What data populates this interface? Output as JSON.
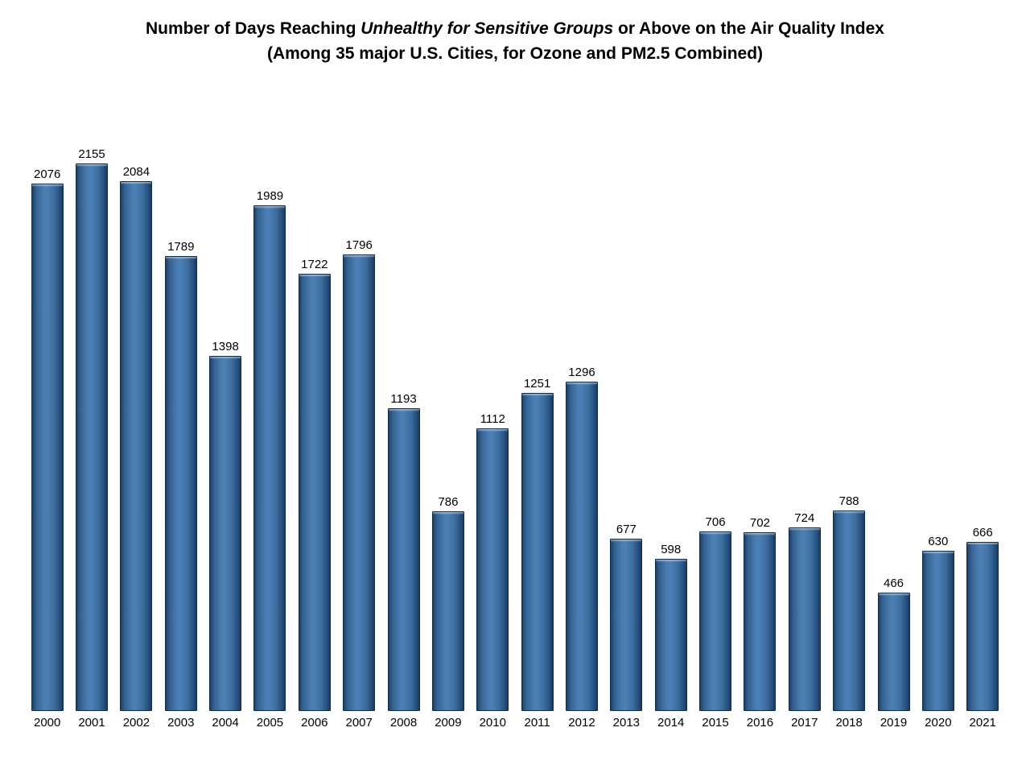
{
  "title": {
    "line1_prefix": "Number of Days Reaching ",
    "line1_italic": "Unhealthy for Sensitive Groups",
    "line1_suffix": " or Above on the Air Quality Index",
    "line2": "(Among 35 major U.S. Cities, for Ozone and PM2.5 Combined)"
  },
  "chart_data": {
    "type": "bar",
    "title": "Number of Days Reaching Unhealthy for Sensitive Groups or Above on the Air Quality Index",
    "subtitle": "(Among 35 major U.S. Cities, for Ozone and PM2.5 Combined)",
    "categories": [
      "2000",
      "2001",
      "2002",
      "2003",
      "2004",
      "2005",
      "2006",
      "2007",
      "2008",
      "2009",
      "2010",
      "2011",
      "2012",
      "2013",
      "2014",
      "2015",
      "2016",
      "2017",
      "2018",
      "2019",
      "2020",
      "2021"
    ],
    "values": [
      2076,
      2155,
      2084,
      1789,
      1398,
      1989,
      1722,
      1796,
      1193,
      786,
      1112,
      1251,
      1296,
      677,
      598,
      706,
      702,
      724,
      788,
      466,
      630,
      666
    ],
    "xlabel": "",
    "ylabel": "",
    "ylim": [
      0,
      2155
    ],
    "grid": false,
    "legend_position": "none",
    "value_labels_shown": true,
    "axis_lines_shown": false,
    "bar_fill_color": "#4c80b5",
    "bar_edge_dark_color": "#1d4066",
    "bar_border_color": "#0e2a49",
    "label_color": "#000000",
    "background_color": "#ffffff"
  }
}
